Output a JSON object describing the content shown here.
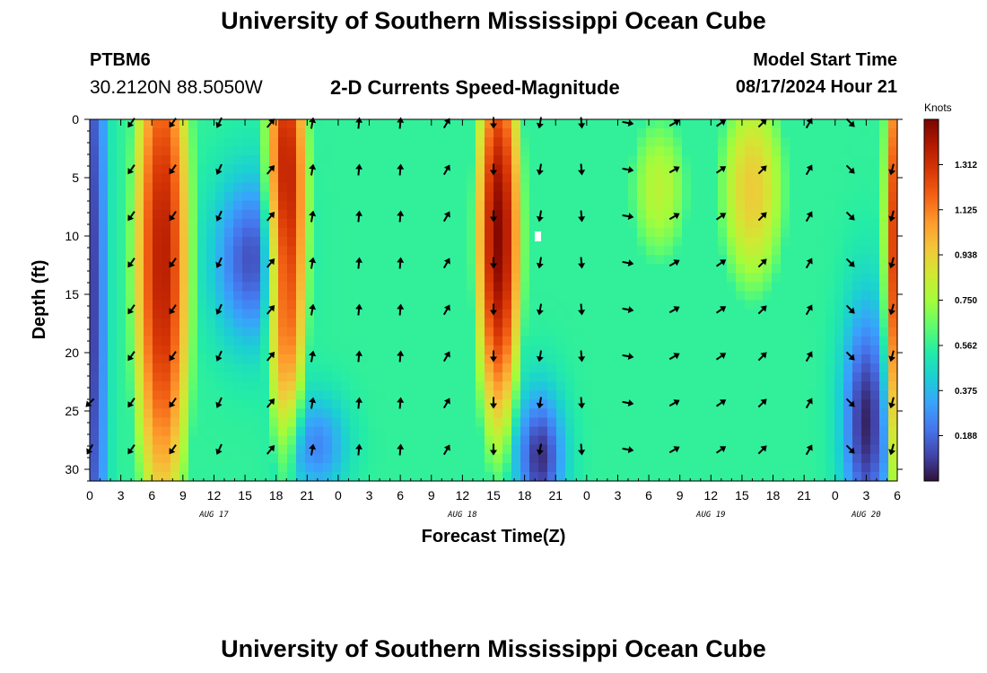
{
  "header": {
    "title": "University of Southern Mississippi Ocean Cube",
    "station": "PTBM6",
    "coords": "30.2120N  88.5050W",
    "subtitle": "2-D Currents Speed-Magnitude",
    "model_start_label": "Model Start Time",
    "model_start_value": "08/17/2024 Hour 21"
  },
  "footer": {
    "title": "University of Southern Mississippi Ocean Cube"
  },
  "chart_data": {
    "type": "heatmap",
    "title": "2-D Currents Speed-Magnitude",
    "xlabel": "Forecast Time(Z)",
    "ylabel": "Depth (ft)",
    "x_ticks": [
      "0",
      "3",
      "6",
      "9",
      "12",
      "15",
      "18",
      "21",
      "0",
      "3",
      "6",
      "9",
      "12",
      "15",
      "18",
      "21",
      "0",
      "3",
      "6",
      "9",
      "12",
      "15",
      "18",
      "21",
      "0",
      "3",
      "6"
    ],
    "x_range_hours": [
      0,
      78
    ],
    "date_labels": [
      {
        "label": "AUG 17",
        "hour": 12
      },
      {
        "label": "AUG 18",
        "hour": 36
      },
      {
        "label": "AUG 19",
        "hour": 60
      },
      {
        "label": "AUG 20",
        "hour": 75
      }
    ],
    "y_ticks": [
      0,
      5,
      10,
      15,
      20,
      25,
      30
    ],
    "y_range": [
      0,
      31
    ],
    "y_inverted": true,
    "colorbar": {
      "unit": "Knots",
      "ticks": [
        "1.312",
        "1.125",
        "0.938",
        "0.750",
        "0.562",
        "0.375",
        "0.188"
      ],
      "tick_values": [
        1.312,
        1.125,
        0.938,
        0.75,
        0.562,
        0.375,
        0.188
      ],
      "range": [
        0,
        1.5
      ],
      "colors": [
        "#30123b",
        "#4145ab",
        "#4675ed",
        "#39a2fc",
        "#1bcfd4",
        "#24eca6",
        "#61fc6c",
        "#a4fc3b",
        "#d1e834",
        "#f3c63a",
        "#fe9b2d",
        "#f36315",
        "#d93806",
        "#b11901",
        "#7a0402"
      ]
    },
    "vectors_depth_ft": [
      0,
      4,
      8,
      12,
      16,
      20,
      24,
      28
    ],
    "vector_columns": [
      {
        "hour": 0,
        "depths": [
          24,
          28
        ],
        "dir_deg": [
          225,
          210
        ]
      },
      {
        "hour": 4,
        "dir_deg": 215
      },
      {
        "hour": 8,
        "dir_deg": 215
      },
      {
        "hour": 12.5,
        "dir_deg": 205
      },
      {
        "hour": 17.5,
        "dir_deg": 40
      },
      {
        "hour": 21.5,
        "dir_deg": 10
      },
      {
        "hour": 26,
        "dir_deg": 5
      },
      {
        "hour": 30,
        "dir_deg": 5
      },
      {
        "hour": 34.5,
        "dir_deg": 30
      },
      {
        "hour": 39,
        "dir_deg": 180
      },
      {
        "hour": 43.5,
        "dir_deg": 190
      },
      {
        "hour": 47.5,
        "dir_deg": 175
      },
      {
        "hour": 52,
        "dir_deg": 100
      },
      {
        "hour": 56.5,
        "dir_deg": 60
      },
      {
        "hour": 61,
        "dir_deg": 55
      },
      {
        "hour": 65,
        "dir_deg": 45
      },
      {
        "hour": 69.5,
        "dir_deg": 30
      },
      {
        "hour": 73.5,
        "dir_deg": 135
      },
      {
        "hour": 77.5,
        "depths": [
          4,
          8,
          12,
          16,
          20,
          24,
          28
        ],
        "dir_deg": 195
      }
    ],
    "speed_model": {
      "background": 0.56,
      "cores": [
        {
          "hour": 7,
          "depth": 12,
          "width_h": 2.6,
          "depth_sigma": 22,
          "peak": 1.38
        },
        {
          "hour": 19,
          "depth": 8,
          "width_h": 1.9,
          "depth_sigma": 18,
          "peak": 1.45
        },
        {
          "hour": 39.5,
          "depth": 10,
          "width_h": 2.0,
          "depth_sigma": 16,
          "peak": 1.48
        },
        {
          "hour": 78,
          "depth": 12,
          "width_h": 1.2,
          "depth_sigma": 22,
          "peak": 1.35
        },
        {
          "hour": 64,
          "depth": 6,
          "width_h": 3.5,
          "depth_sigma": 10,
          "peak": 0.95
        },
        {
          "hour": 55,
          "depth": 6,
          "width_h": 3.5,
          "depth_sigma": 8,
          "peak": 0.8
        }
      ],
      "lows": [
        {
          "hour": 15.5,
          "depth": 12,
          "width_h": 2.5,
          "depth_sigma": 5,
          "dip": 0.42
        },
        {
          "hour": 0.5,
          "depth": 15,
          "width_h": 0.8,
          "depth_sigma": 30,
          "dip": 0.45
        },
        {
          "hour": 43.5,
          "depth": 29,
          "width_h": 1.6,
          "depth_sigma": 4,
          "dip": 0.5
        },
        {
          "hour": 75,
          "depth": 26,
          "width_h": 1.6,
          "depth_sigma": 7,
          "dip": 0.52
        },
        {
          "hour": 22,
          "depth": 28,
          "width_h": 2.0,
          "depth_sigma": 3,
          "dip": 0.3
        }
      ]
    }
  }
}
